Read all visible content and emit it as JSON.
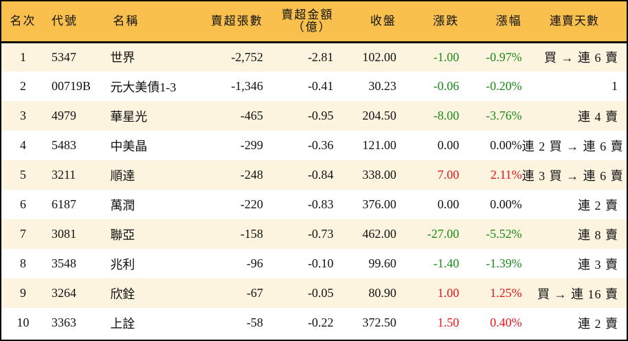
{
  "colors": {
    "header_bg": "#F9C04E",
    "row_odd_bg": "#FDF4E0",
    "row_even_bg": "#FFFFFF",
    "up": "#E8141C",
    "down": "#1A8A1A",
    "border": "#000000"
  },
  "table": {
    "headers": {
      "rank": "名次",
      "code": "代號",
      "name": "名稱",
      "oversold_volume": "賣超張數",
      "oversold_amount": "賣超金額",
      "oversold_amount_unit": "（億）",
      "close": "收盤",
      "change": "漲跌",
      "change_pct": "漲幅",
      "streak": "連賣天數"
    },
    "rows": [
      {
        "rank": "1",
        "code": "5347",
        "name": "世界",
        "volume": "-2,752",
        "amount": "-2.81",
        "close": "102.00",
        "change": "-1.00",
        "pct": "-0.97%",
        "trend": "down",
        "streak": "買 → 連 6 賣"
      },
      {
        "rank": "2",
        "code": "00719B",
        "name": "元大美債1-3",
        "volume": "-1,346",
        "amount": "-0.41",
        "close": "30.23",
        "change": "-0.06",
        "pct": "-0.20%",
        "trend": "down",
        "streak": "1"
      },
      {
        "rank": "3",
        "code": "4979",
        "name": "華星光",
        "volume": "-465",
        "amount": "-0.95",
        "close": "204.50",
        "change": "-8.00",
        "pct": "-3.76%",
        "trend": "down",
        "streak": "連 4 賣"
      },
      {
        "rank": "4",
        "code": "5483",
        "name": "中美晶",
        "volume": "-299",
        "amount": "-0.36",
        "close": "121.00",
        "change": "0.00",
        "pct": "0.00%",
        "trend": "flat",
        "streak": "連 2 買 → 連 6 賣"
      },
      {
        "rank": "5",
        "code": "3211",
        "name": "順達",
        "volume": "-248",
        "amount": "-0.84",
        "close": "338.00",
        "change": "7.00",
        "pct": "2.11%",
        "trend": "up",
        "streak": "連 3 買 → 連 6 賣"
      },
      {
        "rank": "6",
        "code": "6187",
        "name": "萬潤",
        "volume": "-220",
        "amount": "-0.83",
        "close": "376.00",
        "change": "0.00",
        "pct": "0.00%",
        "trend": "flat",
        "streak": "連 2 賣"
      },
      {
        "rank": "7",
        "code": "3081",
        "name": "聯亞",
        "volume": "-158",
        "amount": "-0.73",
        "close": "462.00",
        "change": "-27.00",
        "pct": "-5.52%",
        "trend": "down",
        "streak": "連 8 賣"
      },
      {
        "rank": "8",
        "code": "3548",
        "name": "兆利",
        "volume": "-96",
        "amount": "-0.10",
        "close": "99.60",
        "change": "-1.40",
        "pct": "-1.39%",
        "trend": "down",
        "streak": "連 3 賣"
      },
      {
        "rank": "9",
        "code": "3264",
        "name": "欣銓",
        "volume": "-67",
        "amount": "-0.05",
        "close": "80.90",
        "change": "1.00",
        "pct": "1.25%",
        "trend": "up",
        "streak": "買 → 連 16 賣"
      },
      {
        "rank": "10",
        "code": "3363",
        "name": "上詮",
        "volume": "-58",
        "amount": "-0.22",
        "close": "372.50",
        "change": "1.50",
        "pct": "0.40%",
        "trend": "up",
        "streak": "連 2 賣"
      }
    ]
  }
}
